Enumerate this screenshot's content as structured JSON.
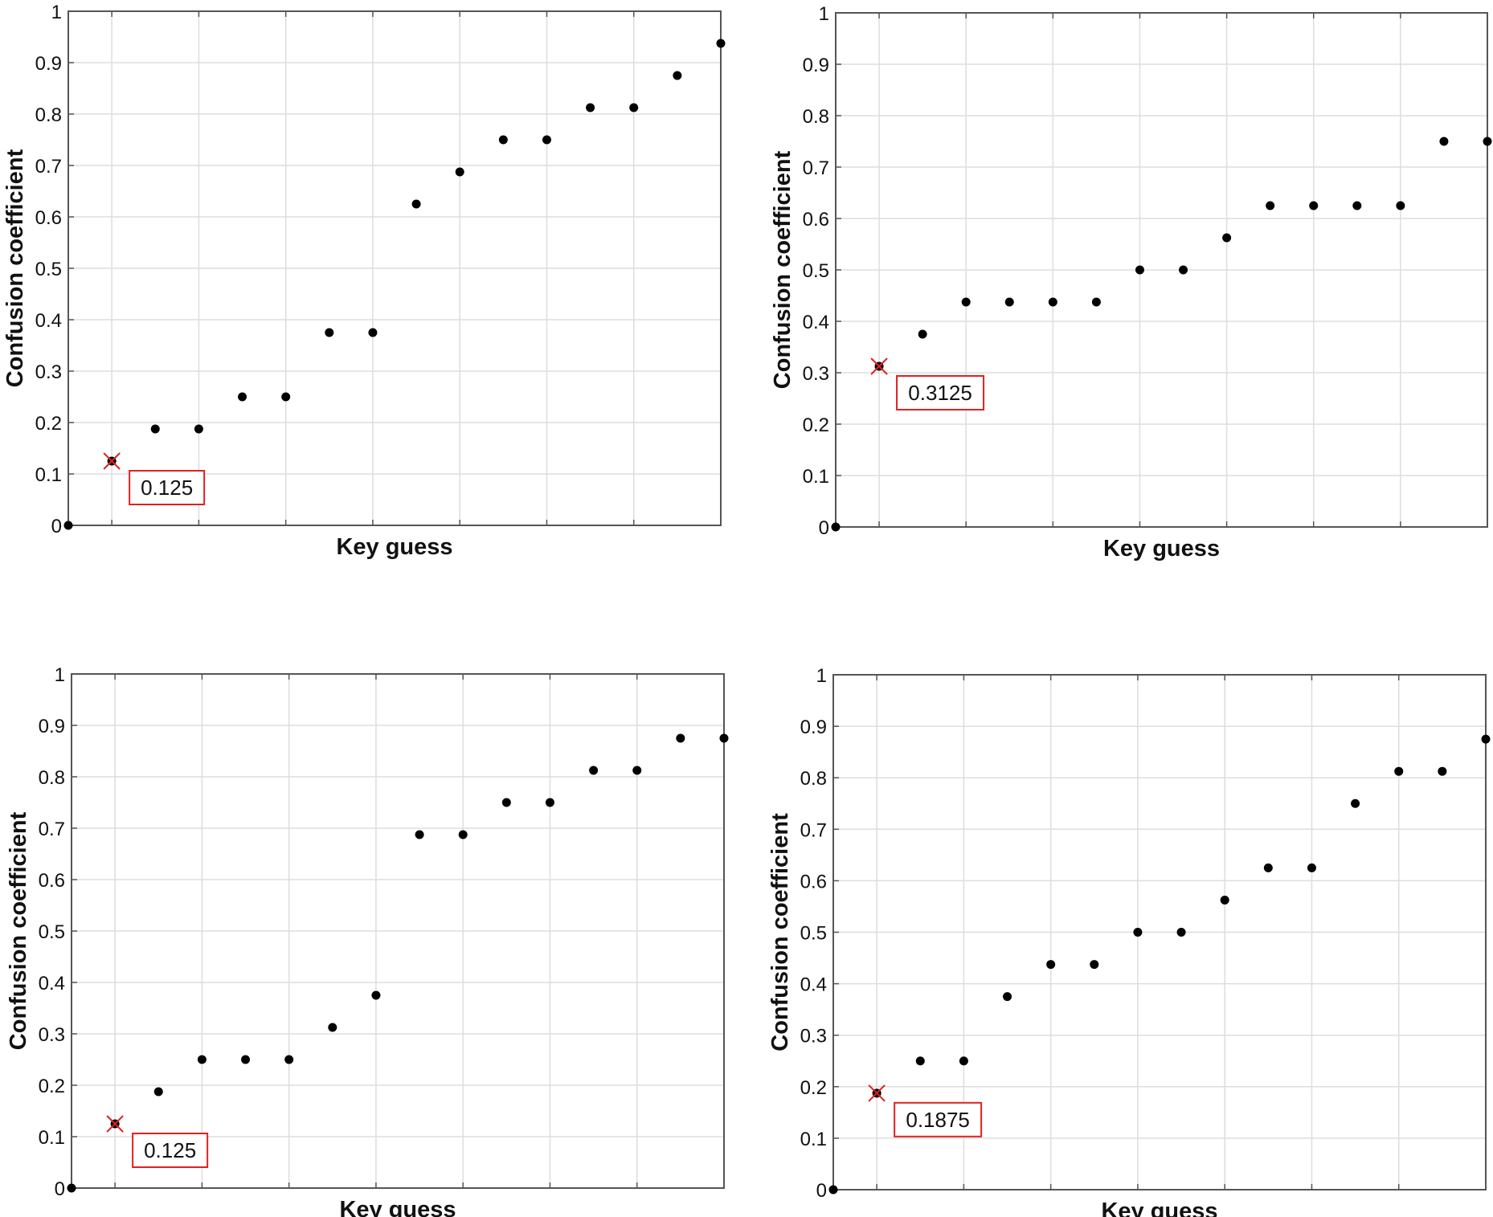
{
  "chart_data": [
    {
      "type": "scatter",
      "title": "",
      "xlabel": "Key guess",
      "ylabel": "Confusion coefficient",
      "xlim": [
        0,
        15
      ],
      "ylim": [
        0,
        1
      ],
      "grid": true,
      "yticks": [
        "0",
        "0.1",
        "0.2",
        "0.3",
        "0.4",
        "0.5",
        "0.6",
        "0.7",
        "0.8",
        "0.9",
        "1"
      ],
      "x": [
        0,
        1,
        2,
        3,
        4,
        5,
        6,
        7,
        8,
        9,
        10,
        11,
        12,
        13,
        14,
        15
      ],
      "y": [
        0,
        0.125,
        0.1875,
        0.1875,
        0.25,
        0.25,
        0.375,
        0.375,
        0.625,
        0.6875,
        0.75,
        0.75,
        0.8125,
        0.8125,
        0.875,
        0.9375
      ],
      "highlight": {
        "x": 1,
        "y": 0.125,
        "label": "0.125"
      }
    },
    {
      "type": "scatter",
      "title": "",
      "xlabel": "Key guess",
      "ylabel": "Confusion coefficient",
      "xlim": [
        0,
        15
      ],
      "ylim": [
        0,
        1
      ],
      "grid": true,
      "yticks": [
        "0",
        "0.1",
        "0.2",
        "0.3",
        "0.4",
        "0.5",
        "0.6",
        "0.7",
        "0.8",
        "0.9",
        "1"
      ],
      "x": [
        0,
        1,
        2,
        3,
        4,
        5,
        6,
        7,
        8,
        9,
        10,
        11,
        12,
        13,
        14,
        15
      ],
      "y": [
        0,
        0.3125,
        0.375,
        0.4375,
        0.4375,
        0.4375,
        0.4375,
        0.5,
        0.5,
        0.5625,
        0.625,
        0.625,
        0.625,
        0.625,
        0.75,
        0.75
      ],
      "highlight": {
        "x": 1,
        "y": 0.3125,
        "label": "0.3125"
      }
    },
    {
      "type": "scatter",
      "title": "",
      "xlabel": "Key guess",
      "ylabel": "Confusion coefficient",
      "xlim": [
        0,
        15
      ],
      "ylim": [
        0,
        1
      ],
      "grid": true,
      "yticks": [
        "0",
        "0.1",
        "0.2",
        "0.3",
        "0.4",
        "0.5",
        "0.6",
        "0.7",
        "0.8",
        "0.9",
        "1"
      ],
      "x": [
        0,
        1,
        2,
        3,
        4,
        5,
        6,
        7,
        8,
        9,
        10,
        11,
        12,
        13,
        14,
        15
      ],
      "y": [
        0,
        0.125,
        0.1875,
        0.25,
        0.25,
        0.25,
        0.3125,
        0.375,
        0.6875,
        0.6875,
        0.75,
        0.75,
        0.8125,
        0.8125,
        0.875,
        0.875
      ],
      "highlight": {
        "x": 1,
        "y": 0.125,
        "label": "0.125"
      }
    },
    {
      "type": "scatter",
      "title": "",
      "xlabel": "Key guess",
      "ylabel": "Confusion coefficient",
      "xlim": [
        0,
        15
      ],
      "ylim": [
        0,
        1
      ],
      "grid": true,
      "yticks": [
        "0",
        "0.1",
        "0.2",
        "0.3",
        "0.4",
        "0.5",
        "0.6",
        "0.7",
        "0.8",
        "0.9",
        "1"
      ],
      "x": [
        0,
        1,
        2,
        3,
        4,
        5,
        6,
        7,
        8,
        9,
        10,
        11,
        12,
        13,
        14,
        15
      ],
      "y": [
        0,
        0.1875,
        0.25,
        0.25,
        0.375,
        0.4375,
        0.4375,
        0.5,
        0.5,
        0.5625,
        0.625,
        0.625,
        0.75,
        0.8125,
        0.8125,
        0.875
      ],
      "highlight": {
        "x": 1,
        "y": 0.1875,
        "label": "0.1875"
      }
    }
  ],
  "colors": {
    "point": "#000000",
    "highlight": "#e02020",
    "grid": "#dddddd",
    "axis": "#555555"
  }
}
